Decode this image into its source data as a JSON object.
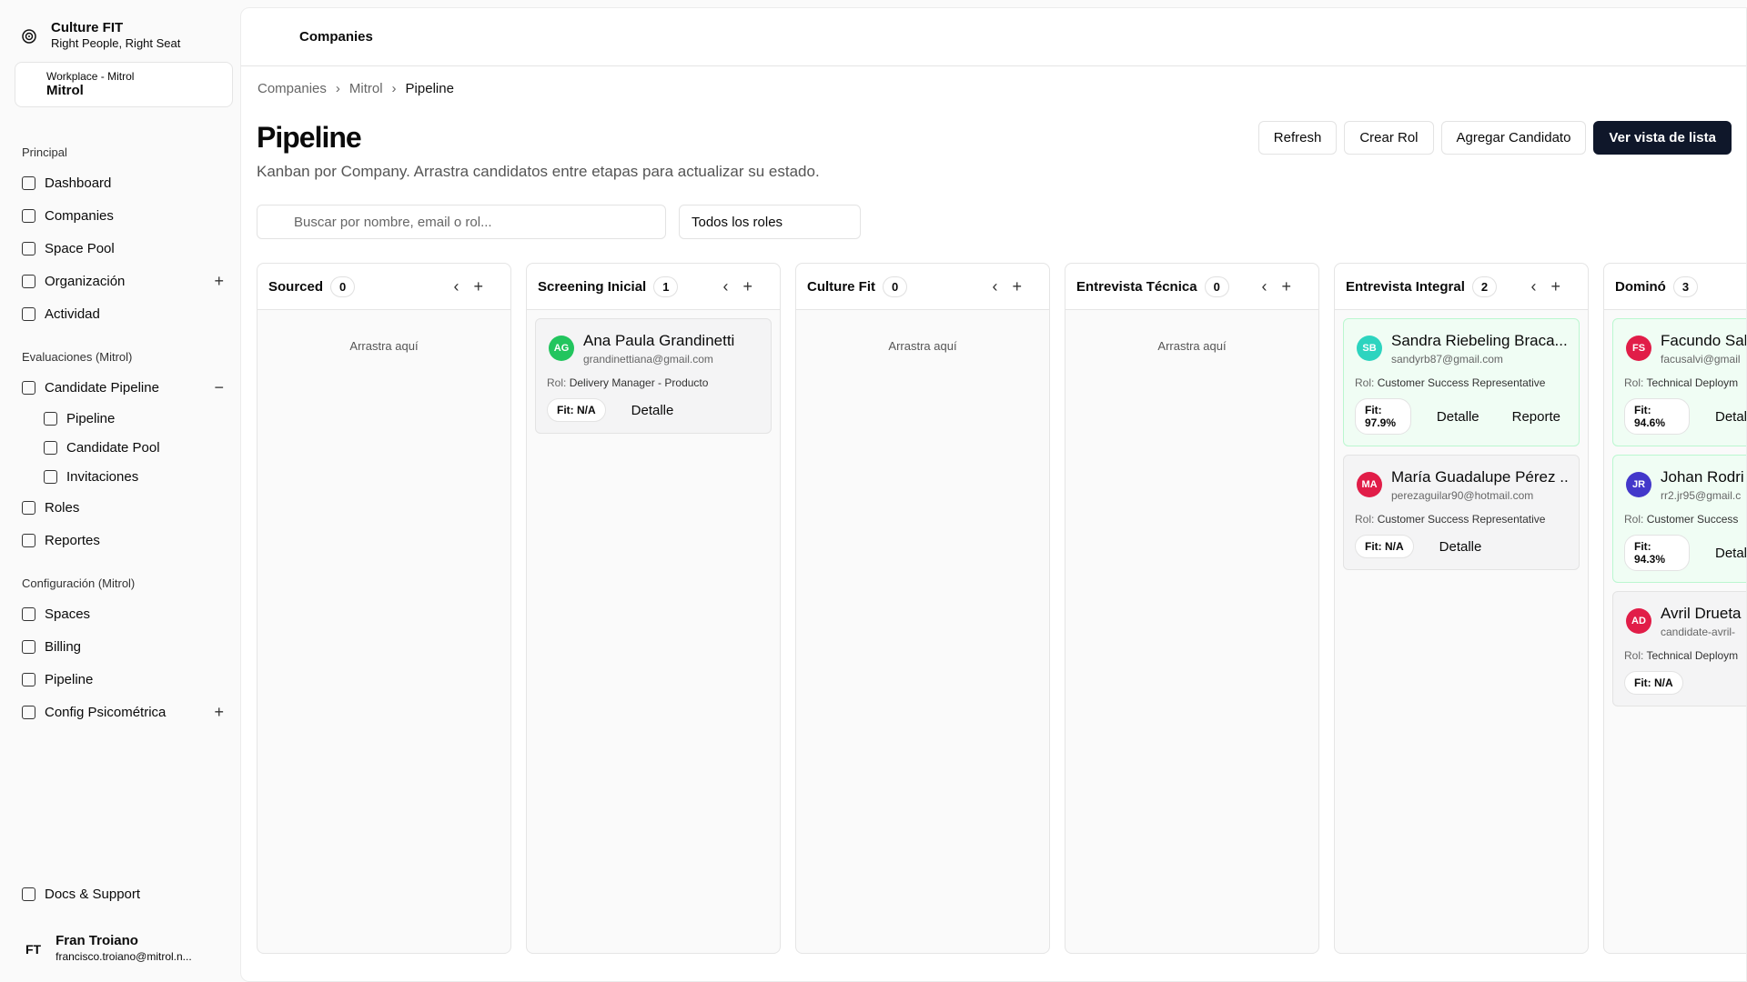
{
  "app": {
    "name": "Culture FIT",
    "tagline": "Right People, Right Seat"
  },
  "workspace": {
    "label": "Workplace - Mitrol",
    "name": "Mitrol"
  },
  "nav": [
    {
      "title": "Principal",
      "items": [
        {
          "label": "Dashboard"
        },
        {
          "label": "Companies"
        },
        {
          "label": "Space Pool"
        },
        {
          "label": "Organización"
        },
        {
          "label": "Actividad"
        }
      ]
    },
    {
      "title": "Evaluaciones (Mitrol)",
      "items": [
        {
          "label": "Candidate Pipeline",
          "children": [
            "Pipeline",
            "Candidate Pool",
            "Invitaciones"
          ]
        },
        {
          "label": "Roles"
        },
        {
          "label": "Reportes"
        }
      ]
    },
    {
      "title": "Configuración (Mitrol)",
      "items": [
        {
          "label": "Spaces"
        },
        {
          "label": "Billing"
        },
        {
          "label": "Pipeline"
        },
        {
          "label": "Config Psicométrica"
        }
      ]
    }
  ],
  "docs": "Docs & Support",
  "user": {
    "initials": "FT",
    "name": "Fran Troiano",
    "email": "francisco.troiano@mitrol.n..."
  },
  "header": {
    "title": "Companies"
  },
  "breadcrumb": [
    "Companies",
    "Mitrol",
    "Pipeline"
  ],
  "page": {
    "title": "Pipeline",
    "subtitle": "Kanban por Company. Arrastra candidatos entre etapas para actualizar su estado."
  },
  "buttons": [
    "Refresh",
    "Crear Rol",
    "Agregar Candidato",
    "Ver vista de lista"
  ],
  "search": {
    "placeholder": "Buscar por nombre, email o rol...",
    "role_filter": "Todos los roles"
  },
  "columns": [
    {
      "name": "Sourced",
      "count": 0,
      "empty": "Arrastra aquí",
      "cards": []
    },
    {
      "name": "Screening Inicial",
      "count": 1,
      "cards": [
        {
          "initials": "AG",
          "avatar": "#22c55e",
          "name": "Ana Paula Grandinetti",
          "email": "grandinettiana@gmail.com",
          "role_label": "Rol:",
          "role": "Delivery Manager - Producto",
          "fit": "Fit: N/A",
          "actions": [
            "Detalle"
          ]
        }
      ]
    },
    {
      "name": "Culture Fit",
      "count": 0,
      "empty": "Arrastra aquí",
      "cards": []
    },
    {
      "name": "Entrevista Técnica",
      "count": 0,
      "empty": "Arrastra aquí",
      "cards": []
    },
    {
      "name": "Entrevista Integral",
      "count": 2,
      "cards": [
        {
          "initials": "SB",
          "avatar": "#2dd4bf",
          "name": "Sandra Riebeling Braca...",
          "email": "sandyrb87@gmail.com",
          "role_label": "Rol:",
          "role": "Customer Success Representative",
          "fit": "Fit: 97.9%",
          "highlight": true,
          "actions": [
            "Detalle",
            "Reporte"
          ]
        },
        {
          "initials": "MA",
          "avatar": "#e11d48",
          "name": "María Guadalupe Pérez ...",
          "email": "perezaguilar90@hotmail.com",
          "role_label": "Rol:",
          "role": "Customer Success Representative",
          "fit": "Fit: N/A",
          "actions": [
            "Detalle"
          ]
        }
      ]
    },
    {
      "name": "Dominó",
      "count": 3,
      "cards": [
        {
          "initials": "FS",
          "avatar": "#e11d48",
          "name": "Facundo Sal",
          "email": "facusalvi@gmail",
          "role_label": "Rol:",
          "role": "Technical Deploym",
          "fit": "Fit: 94.6%",
          "highlight": true,
          "actions": [
            "Detall"
          ]
        },
        {
          "initials": "JR",
          "avatar": "#4338ca",
          "name": "Johan Rodri",
          "email": "rr2.jr95@gmail.c",
          "role_label": "Rol:",
          "role": "Customer Success",
          "fit": "Fit: 94.3%",
          "highlight": true,
          "actions": [
            "Detall"
          ]
        },
        {
          "initials": "AD",
          "avatar": "#e11d48",
          "name": "Avril Drueta",
          "email": "candidate-avril-",
          "role_label": "Rol:",
          "role": "Technical Deploym",
          "fit": "Fit: N/A",
          "actions": []
        }
      ]
    }
  ]
}
